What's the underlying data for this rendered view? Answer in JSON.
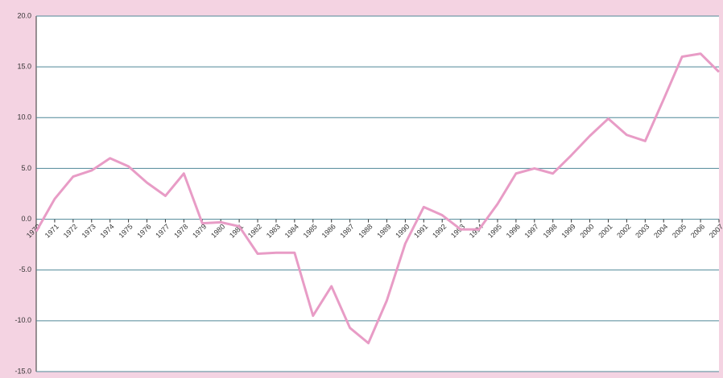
{
  "chart_data": {
    "type": "line",
    "categories": [
      "1970",
      "1971",
      "1972",
      "1973",
      "1974",
      "1975",
      "1976",
      "1977",
      "1978",
      "1979",
      "1980",
      "1981",
      "1982",
      "1983",
      "1984",
      "1985",
      "1986",
      "1987",
      "1988",
      "1989",
      "1990",
      "1991",
      "1992",
      "1993",
      "1994",
      "1995",
      "1996",
      "1997",
      "1998",
      "1999",
      "2000",
      "2001",
      "2002",
      "2003",
      "2004",
      "2005",
      "2006",
      "2007"
    ],
    "values": [
      -1.2,
      2.0,
      4.2,
      4.8,
      6.0,
      5.2,
      3.6,
      2.3,
      4.5,
      -0.4,
      -0.3,
      -0.7,
      -3.4,
      -3.3,
      -3.3,
      -9.5,
      -6.6,
      -10.7,
      -12.2,
      -8.0,
      -2.4,
      1.2,
      0.4,
      -1.0,
      -1.0,
      1.5,
      4.5,
      5.0,
      4.5,
      6.3,
      8.2,
      9.9,
      8.3,
      7.7,
      11.8,
      16.0,
      16.3,
      14.5
    ],
    "color": "#e89cc6",
    "ylim": [
      -15,
      20
    ],
    "yticks": [
      {
        "value": -15,
        "label": "-15.0"
      },
      {
        "value": -10,
        "label": "-10.0"
      },
      {
        "value": -5,
        "label": "-5.0"
      },
      {
        "value": 0,
        "label": "0.0"
      },
      {
        "value": 5,
        "label": "5.0"
      },
      {
        "value": 10,
        "label": "10.0"
      },
      {
        "value": 15,
        "label": "15.0"
      },
      {
        "value": 20,
        "label": "20.0"
      }
    ],
    "grid": true
  }
}
